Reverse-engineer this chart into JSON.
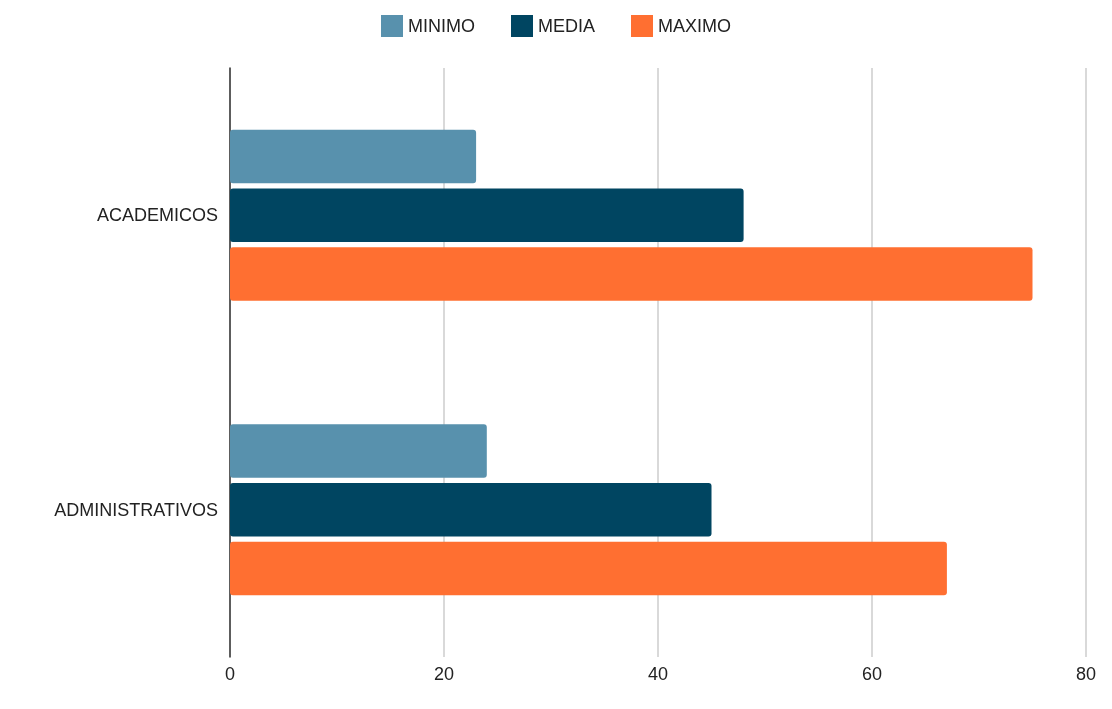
{
  "chart_data": {
    "type": "bar",
    "orientation": "horizontal",
    "categories": [
      "ACADEMICOS",
      "ADMINISTRATIVOS"
    ],
    "series": [
      {
        "name": "MINIMO",
        "color": "#5891ad",
        "values": [
          23,
          24
        ]
      },
      {
        "name": "MEDIA",
        "color": "#004561",
        "values": [
          48,
          45
        ]
      },
      {
        "name": "MAXIMO",
        "color": "#ff6f31",
        "values": [
          75,
          67
        ]
      }
    ],
    "xlim": [
      0,
      80
    ],
    "xticks": [
      0,
      20,
      40,
      60,
      80
    ],
    "grid": "x",
    "legend": "top"
  }
}
